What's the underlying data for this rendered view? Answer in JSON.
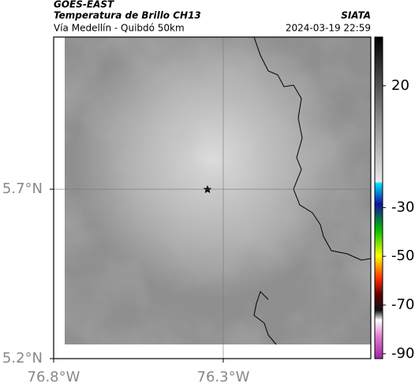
{
  "header": {
    "title": "GOES-EAST",
    "subtitle": "Temperatura de Brillo CH13",
    "source": "SIATA",
    "route": "Vía Medellín - Quibdó 50km",
    "timestamp": "2024-03-19 22:59"
  },
  "map": {
    "xlim": [
      -76.8,
      -75.865
    ],
    "ylim": [
      5.2,
      6.149
    ],
    "xticks": [
      {
        "value": -76.8,
        "label": "76.8°W"
      },
      {
        "value": -76.3,
        "label": "76.3°W"
      }
    ],
    "yticks": [
      {
        "value": 5.7,
        "label": "5.7°N"
      },
      {
        "value": 5.2,
        "label": "5.2°N"
      }
    ]
  },
  "colorbar": {
    "lim": [
      40,
      -92
    ],
    "ticks": [
      20,
      -30,
      -50,
      -70,
      -90
    ]
  }
}
